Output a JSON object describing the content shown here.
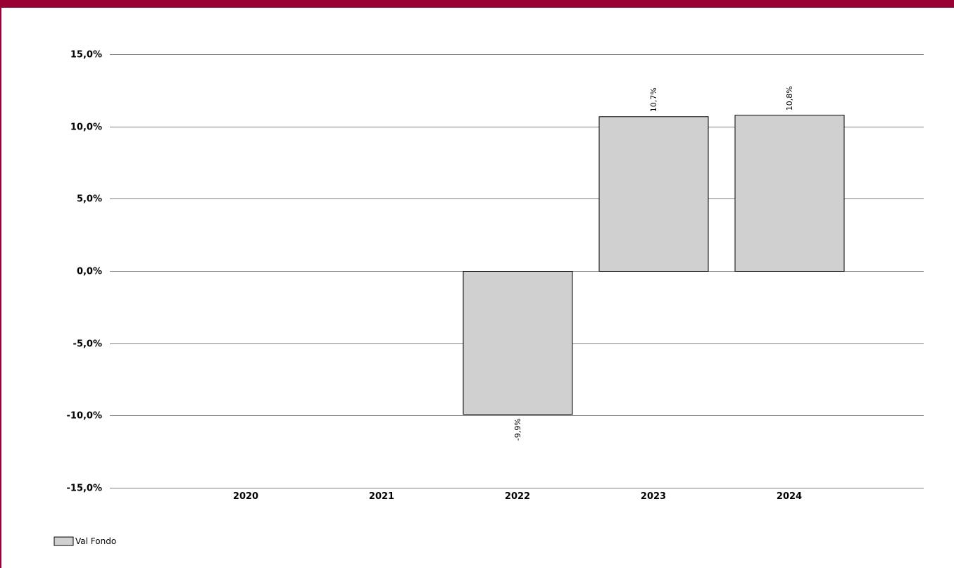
{
  "chart_data": {
    "type": "bar",
    "title": "",
    "xlabel": "",
    "ylabel": "",
    "categories": [
      "2020",
      "2021",
      "2022",
      "2023",
      "2024"
    ],
    "series": [
      {
        "name": "Val Fondo",
        "values": [
          null,
          null,
          -9.9,
          10.7,
          10.8
        ],
        "data_labels": [
          "",
          "",
          "-9,9%",
          "10,7%",
          "10,8%"
        ],
        "color": "#d0d0d0"
      }
    ],
    "ylim": [
      -15,
      15
    ],
    "y_ticks": [
      15,
      10,
      5,
      0,
      -5,
      -10,
      -15
    ],
    "y_tick_labels": [
      "15,0%",
      "10,0%",
      "5,0%",
      "0,0%",
      "-5,0%",
      "-10,0%",
      "-15,0%"
    ],
    "grid": true,
    "legend": "bottom-left",
    "colors": {
      "frame": "#990033",
      "gridline": "#808080",
      "bar_fill": "#d0d0d0",
      "bar_stroke": "#000000"
    }
  }
}
